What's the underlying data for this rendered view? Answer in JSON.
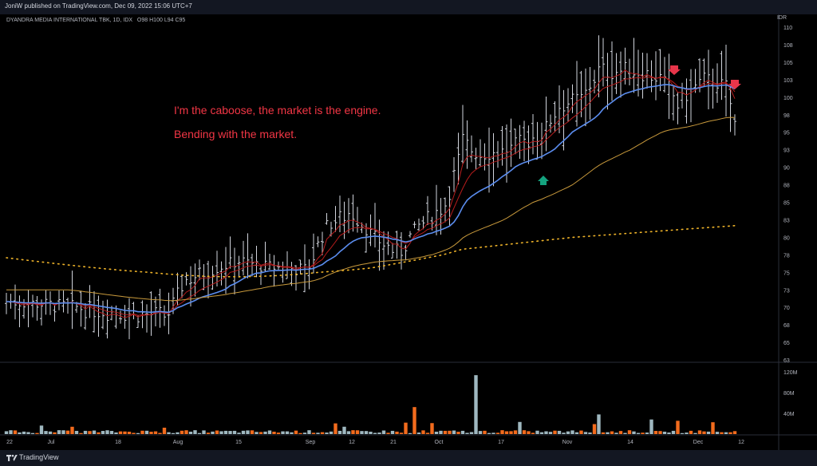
{
  "header": {
    "published_text": "JoniW published on TradingView.com, Dec 09, 2022 15:06 UTC+7"
  },
  "symbol": {
    "name": "DYANDRA MEDIA INTERNATIONAL TBK, 1D, IDX",
    "open_label": "O",
    "open": "98",
    "high_label": "H",
    "high": "100",
    "low_label": "L",
    "low": "94",
    "close_label": "C",
    "close": "95"
  },
  "currency": "IDR",
  "annotations": {
    "line1": "I'm the caboose, the market is the engine.",
    "line2": "Bending with the market."
  },
  "price_axis": [
    "110",
    "108",
    "105",
    "103",
    "100",
    "98",
    "95",
    "93",
    "90",
    "88",
    "85",
    "83",
    "80",
    "78",
    "75",
    "73",
    "70",
    "68",
    "65",
    "63"
  ],
  "volume_axis": [
    "120M",
    "80M",
    "40M"
  ],
  "time_axis": [
    "22",
    "Jul",
    "18",
    "Aug",
    "15",
    "Sep",
    "12",
    "21",
    "Oct",
    "17",
    "Nov",
    "14",
    "Dec",
    "12"
  ],
  "footer": {
    "brand": "TradingView"
  },
  "colors": {
    "background": "#000000",
    "frame": "#131722",
    "bars": "#d1d4dc",
    "ema_fast": "#b71c1c",
    "ema_mid": "#5b8def",
    "ema_slow": "#c99a3c",
    "dots": "#f0b429",
    "volume_up": "#9fb8c0",
    "volume_down": "#f26b1d",
    "arrow_down": "#e8354a",
    "arrow_up": "#14a37f",
    "annotation": "#f23645"
  },
  "chart_data": {
    "type": "ohlc-bar",
    "series": [
      {
        "name": "Price bars"
      },
      {
        "name": "EMA fast"
      },
      {
        "name": "EMA medium"
      },
      {
        "name": "EMA slow"
      },
      {
        "name": "Long MA (dotted)"
      },
      {
        "name": "Volume"
      }
    ],
    "ylim": [
      63,
      110
    ],
    "last_ohlc": {
      "open": 98,
      "high": 100,
      "low": 94,
      "close": 95
    },
    "marks": {
      "arrows_down": 2,
      "arrows_up": 1
    }
  }
}
